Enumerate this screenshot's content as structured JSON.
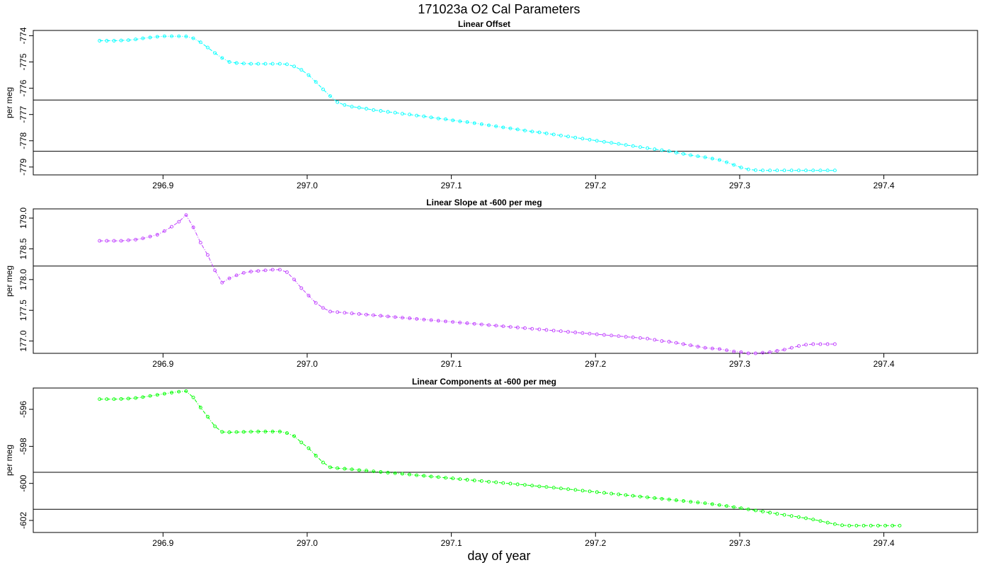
{
  "figure": {
    "title": "171023a   O2 Cal Parameters",
    "xlabel": "day of year"
  },
  "chart_data": [
    {
      "type": "line",
      "title": "Linear Offset",
      "ylabel": "per meg",
      "color": "#00ffff",
      "xlim": [
        296.81,
        297.465
      ],
      "ylim": [
        -779.3,
        -773.8
      ],
      "x_ticks": [
        "296.9",
        "297.0",
        "297.1",
        "297.2",
        "297.3",
        "297.4"
      ],
      "y_ticks": [
        "-774",
        "-775",
        "-776",
        "-777",
        "-778",
        "-779"
      ],
      "reference_lines": [
        -776.45,
        -778.4
      ],
      "x_start": 296.856,
      "x_step": 0.005,
      "y_values": [
        -774.19,
        -774.19,
        -774.19,
        -774.18,
        -774.17,
        -774.14,
        -774.1,
        -774.07,
        -774.04,
        -774.02,
        -774.02,
        -774.02,
        -774.03,
        -774.1,
        -774.25,
        -774.45,
        -774.66,
        -774.85,
        -775.0,
        -775.04,
        -775.06,
        -775.07,
        -775.07,
        -775.07,
        -775.07,
        -775.07,
        -775.09,
        -775.17,
        -775.3,
        -775.5,
        -775.76,
        -776.04,
        -776.3,
        -776.53,
        -776.64,
        -776.7,
        -776.74,
        -776.78,
        -776.83,
        -776.86,
        -776.9,
        -776.93,
        -776.97,
        -777.0,
        -777.04,
        -777.07,
        -777.11,
        -777.15,
        -777.18,
        -777.22,
        -777.26,
        -777.29,
        -777.33,
        -777.37,
        -777.41,
        -777.45,
        -777.49,
        -777.53,
        -777.57,
        -777.61,
        -777.65,
        -777.68,
        -777.72,
        -777.76,
        -777.8,
        -777.84,
        -777.88,
        -777.92,
        -777.96,
        -778.0,
        -778.04,
        -778.08,
        -778.12,
        -778.16,
        -778.2,
        -778.24,
        -778.28,
        -778.32,
        -778.36,
        -778.4,
        -778.45,
        -778.5,
        -778.55,
        -778.59,
        -778.63,
        -778.68,
        -778.73,
        -778.82,
        -778.92,
        -779.02,
        -779.09,
        -779.12,
        -779.13,
        -779.13,
        -779.13,
        -779.13,
        -779.13,
        -779.13,
        -779.13,
        -779.13,
        -779.13,
        -779.13,
        -779.13
      ]
    },
    {
      "type": "line",
      "title": "Linear Slope at -600 per meg",
      "ylabel": "per meg",
      "color": "#c040ff",
      "xlim": [
        296.81,
        297.465
      ],
      "ylim": [
        176.8,
        179.15
      ],
      "x_ticks": [
        "296.9",
        "297.0",
        "297.1",
        "297.2",
        "297.3",
        "297.4"
      ],
      "y_ticks": [
        "177.0",
        "177.5",
        "178.0",
        "178.5",
        "179.0"
      ],
      "reference_lines": [
        178.22
      ],
      "x_start": 296.856,
      "x_step": 0.005,
      "y_values": [
        178.63,
        178.63,
        178.63,
        178.63,
        178.64,
        178.65,
        178.67,
        178.7,
        178.73,
        178.79,
        178.86,
        178.94,
        179.05,
        178.85,
        178.6,
        178.4,
        178.15,
        177.95,
        178.02,
        178.07,
        178.11,
        178.13,
        178.14,
        178.15,
        178.16,
        178.16,
        178.12,
        178.0,
        177.86,
        177.74,
        177.62,
        177.54,
        177.48,
        177.47,
        177.46,
        177.45,
        177.44,
        177.43,
        177.42,
        177.41,
        177.4,
        177.39,
        177.38,
        177.37,
        177.36,
        177.35,
        177.34,
        177.33,
        177.32,
        177.31,
        177.3,
        177.29,
        177.28,
        177.27,
        177.26,
        177.25,
        177.24,
        177.23,
        177.22,
        177.21,
        177.2,
        177.19,
        177.18,
        177.17,
        177.16,
        177.15,
        177.14,
        177.13,
        177.12,
        177.11,
        177.1,
        177.09,
        177.08,
        177.07,
        177.06,
        177.05,
        177.04,
        177.02,
        177.0,
        176.99,
        176.97,
        176.95,
        176.93,
        176.91,
        176.89,
        176.88,
        176.87,
        176.85,
        176.83,
        176.82,
        176.8,
        176.8,
        176.81,
        176.82,
        176.84,
        176.86,
        176.89,
        176.92,
        176.94,
        176.95,
        176.95,
        176.95,
        176.95
      ]
    },
    {
      "type": "line",
      "title": "Linear Components at -600 per meg",
      "ylabel": "per meg",
      "color": "#00ff00",
      "xlim": [
        296.81,
        297.465
      ],
      "ylim": [
        -602.65,
        -594.85
      ],
      "x_ticks": [
        "296.9",
        "297.0",
        "297.1",
        "297.2",
        "297.3",
        "297.4"
      ],
      "y_ticks": [
        "-596",
        "-598",
        "-600",
        "-602"
      ],
      "reference_lines": [
        -599.4,
        -601.4
      ],
      "x_start": 296.856,
      "x_step": 0.005,
      "y_values": [
        -595.45,
        -595.45,
        -595.45,
        -595.44,
        -595.42,
        -595.39,
        -595.34,
        -595.28,
        -595.22,
        -595.16,
        -595.1,
        -595.05,
        -595.02,
        -595.36,
        -595.9,
        -596.4,
        -596.92,
        -597.22,
        -597.24,
        -597.23,
        -597.22,
        -597.21,
        -597.2,
        -597.2,
        -597.2,
        -597.2,
        -597.28,
        -597.45,
        -597.79,
        -598.1,
        -598.5,
        -598.87,
        -599.13,
        -599.18,
        -599.21,
        -599.24,
        -599.28,
        -599.31,
        -599.35,
        -599.38,
        -599.42,
        -599.45,
        -599.48,
        -599.52,
        -599.56,
        -599.59,
        -599.63,
        -599.66,
        -599.7,
        -599.73,
        -599.77,
        -599.8,
        -599.84,
        -599.87,
        -599.91,
        -599.94,
        -599.98,
        -600.01,
        -600.05,
        -600.08,
        -600.12,
        -600.16,
        -600.19,
        -600.23,
        -600.27,
        -600.31,
        -600.35,
        -600.39,
        -600.43,
        -600.47,
        -600.51,
        -600.55,
        -600.59,
        -600.63,
        -600.67,
        -600.71,
        -600.75,
        -600.79,
        -600.83,
        -600.87,
        -600.91,
        -600.95,
        -600.99,
        -601.03,
        -601.07,
        -601.12,
        -601.17,
        -601.22,
        -601.28,
        -601.34,
        -601.4,
        -601.46,
        -601.52,
        -601.58,
        -601.64,
        -601.7,
        -601.76,
        -601.82,
        -601.88,
        -601.95,
        -602.03,
        -602.12,
        -602.2,
        -602.26,
        -602.28,
        -602.28,
        -602.28,
        -602.28,
        -602.28,
        -602.28,
        -602.28,
        -602.28
      ]
    }
  ]
}
